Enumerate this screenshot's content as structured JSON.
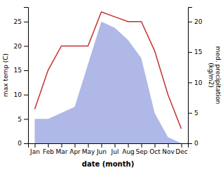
{
  "chart_data": {
    "type": "line",
    "categories": [
      "Jan",
      "Feb",
      "Mar",
      "Apr",
      "May",
      "Jun",
      "Jul",
      "Aug",
      "Sep",
      "Oct",
      "Nov",
      "Dec"
    ],
    "series": [
      {
        "type": "area",
        "axis": "y2",
        "color": "#b0b8e8",
        "values": [
          4,
          4,
          5,
          6,
          13,
          20,
          19,
          17,
          14,
          5,
          1,
          0
        ]
      },
      {
        "type": "line",
        "color": "#c83030",
        "values": [
          7,
          15,
          20,
          20,
          20,
          27,
          26,
          25,
          25,
          19,
          10,
          3
        ]
      }
    ],
    "xlabel": "date (month)",
    "ylabel": "max temp (C)",
    "y2label": "med. precipitation\n(kg/m2)",
    "ylim": [
      0,
      28
    ],
    "yticks": [
      0,
      5,
      10,
      15,
      20,
      25
    ],
    "y2lim": [
      0,
      22.4
    ],
    "y2ticks": [
      0,
      5,
      10,
      15,
      20
    ]
  }
}
